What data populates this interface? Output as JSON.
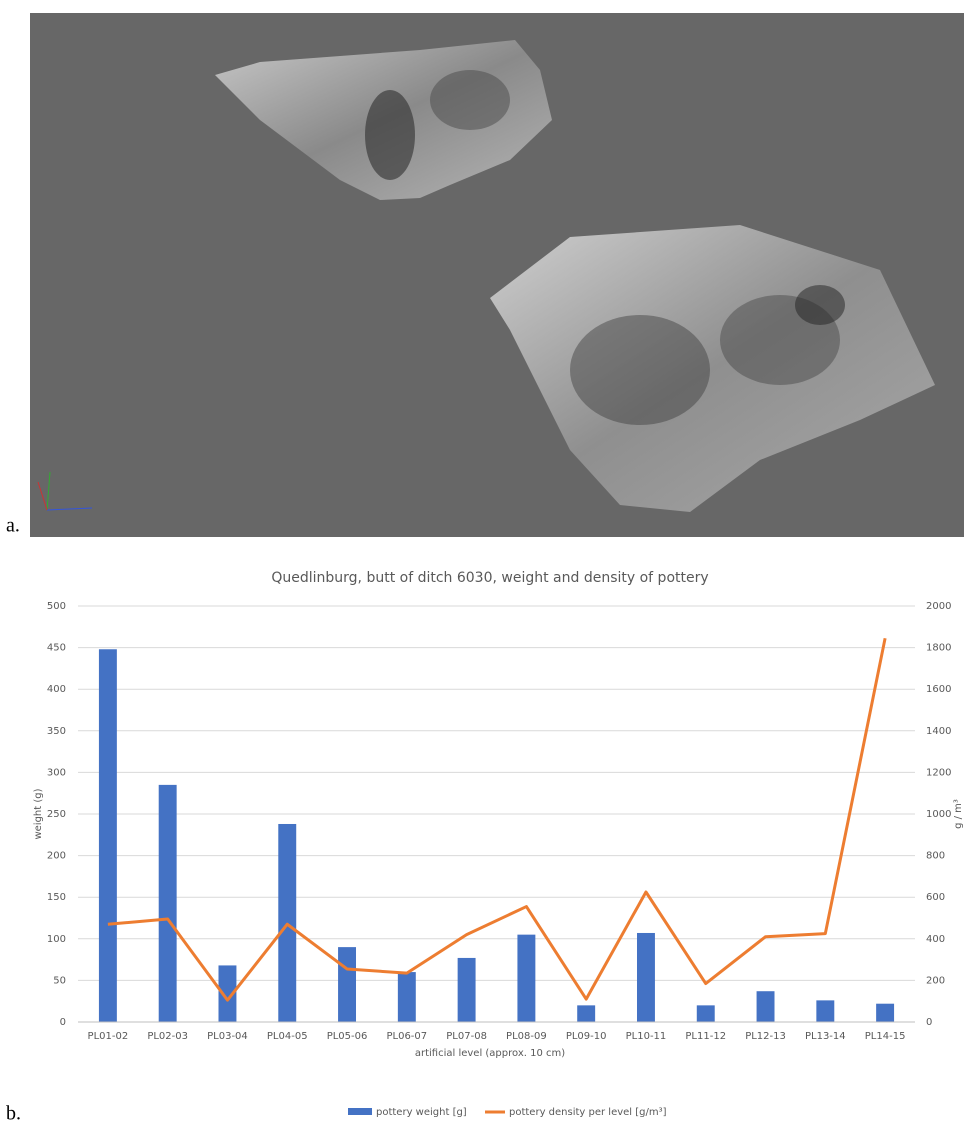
{
  "panel_labels": [
    "a.",
    "b."
  ],
  "chart_data": {
    "type": "bar",
    "title": "Quedlinburg, butt of ditch 6030, weight and density of pottery",
    "x_label": "artificial level (approx. 10 cm)",
    "y_label": "weight (g)",
    "y2_label": "g / m³",
    "categories": [
      "PL01-02",
      "PL02-03",
      "PL03-04",
      "PL04-05",
      "PL05-06",
      "PL06-07",
      "PL07-08",
      "PL08-09",
      "PL09-10",
      "PL10-11",
      "PL11-12",
      "PL12-13",
      "PL13-14",
      "PL14-15"
    ],
    "series": [
      {
        "name": "pottery weight [g]",
        "type": "bar",
        "color": "#4472c4",
        "values": [
          448,
          285,
          68,
          238,
          90,
          60,
          77,
          105,
          20,
          107,
          20,
          37,
          26,
          22
        ]
      },
      {
        "name": "pottery density per level [g/m³]",
        "type": "line",
        "axis": "y2",
        "color": "#ed7d31",
        "values": [
          470,
          495,
          105,
          470,
          255,
          235,
          420,
          555,
          110,
          625,
          185,
          410,
          425,
          1845
        ]
      }
    ],
    "ylim": [
      0,
      500
    ],
    "yticks": [
      0,
      50,
      100,
      150,
      200,
      250,
      300,
      350,
      400,
      450,
      500
    ],
    "y2lim": [
      0,
      2000
    ],
    "y2ticks": [
      0,
      200,
      400,
      600,
      800,
      1000,
      1200,
      1400,
      1600,
      1800,
      2000
    ],
    "grid": true,
    "legend": "bottom"
  }
}
